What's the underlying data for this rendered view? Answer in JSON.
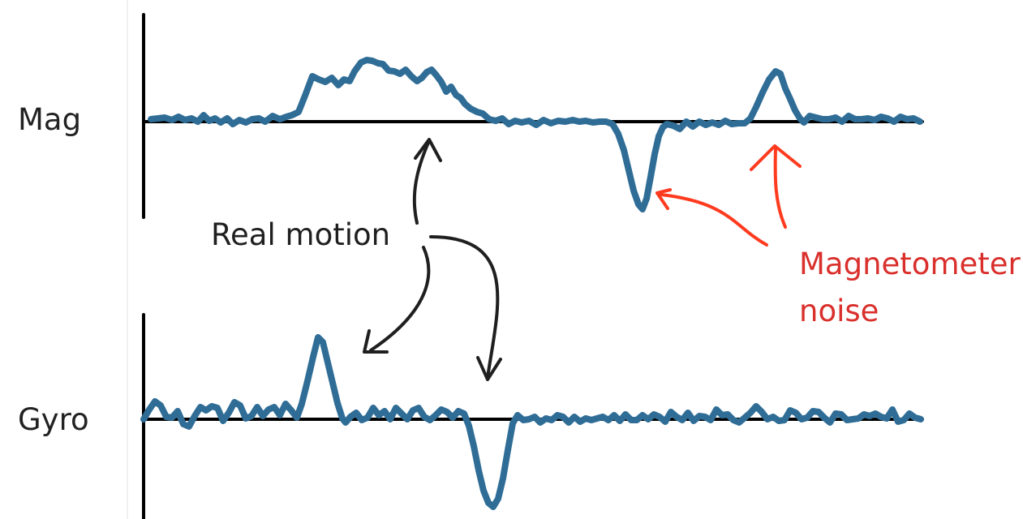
{
  "colors": {
    "signal": "#2f6d96",
    "axis": "#000000",
    "real_motion": "#1f1f1f",
    "noise": "#d9302c"
  },
  "rows": {
    "mag_label": "Mag",
    "gyro_label": "Gyro"
  },
  "callouts": {
    "real_motion": "Real motion",
    "noise_line1": "Magnetometer",
    "noise_line2": "noise"
  }
}
